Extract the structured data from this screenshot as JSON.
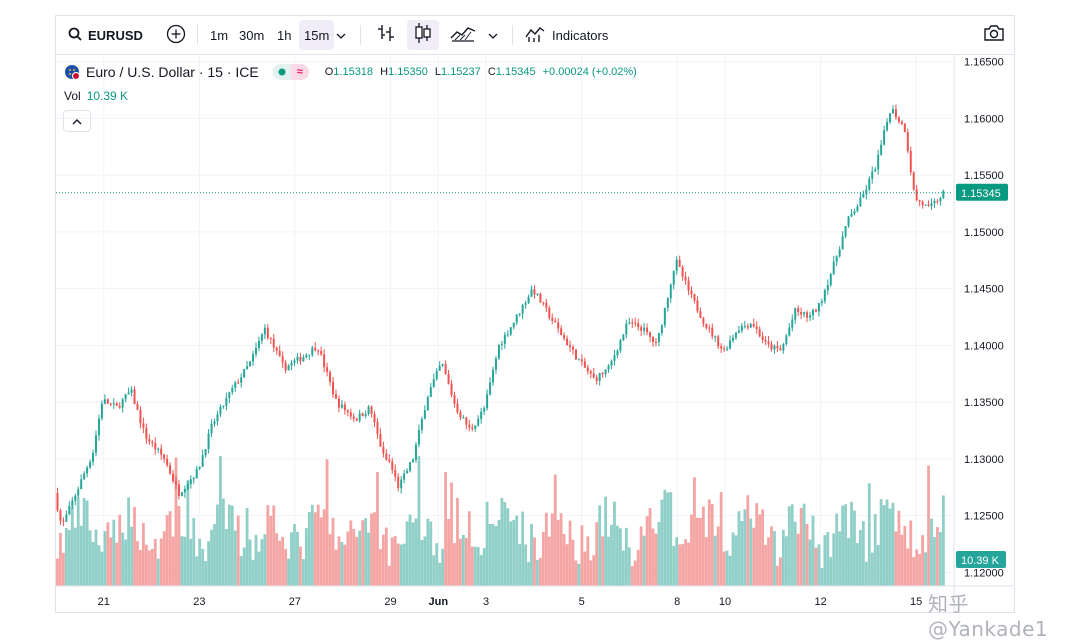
{
  "toolbar": {
    "symbol": "EURUSD",
    "timeframes": [
      "1m",
      "30m",
      "1h",
      "15m"
    ],
    "active_timeframe": "15m",
    "indicators_label": "Indicators",
    "icons": [
      "search-icon",
      "add-symbol-icon",
      "chevron-down-icon",
      "bar-style-icon",
      "candle-style-icon",
      "area-style-icon",
      "indicators-icon",
      "camera-icon"
    ]
  },
  "legend": {
    "title": "Euro / U.S. Dollar · 15 · ICE",
    "open_label": "O",
    "open": "1.15318",
    "high_label": "H",
    "high": "1.15350",
    "low_label": "L",
    "low": "1.15237",
    "close_label": "C",
    "close": "1.15345",
    "change": "+0.00024 (+0.02%)"
  },
  "volume": {
    "label": "Vol",
    "value": "10.39 K"
  },
  "watermark": "知乎 @Yankade1",
  "colors": {
    "up": "#26a69a",
    "down": "#ef5350",
    "vol_up": "#8fcfc7",
    "vol_down": "#f4a5a3",
    "accent": "#089981"
  },
  "chart_data": {
    "type": "candlestick",
    "y_ticks": [
      "1.16500",
      "1.16000",
      "1.15500",
      "1.15000",
      "1.14500",
      "1.14000",
      "1.13500",
      "1.13000",
      "1.12500",
      "1.12000"
    ],
    "ylim": [
      1.1188,
      1.1655
    ],
    "x_ticks": [
      {
        "label": "21",
        "day": 1
      },
      {
        "label": "23",
        "day": 3
      },
      {
        "label": "27",
        "day": 5
      },
      {
        "label": "29",
        "day": 7
      },
      {
        "label": "Jun",
        "day": 8
      },
      {
        "label": "3",
        "day": 9
      },
      {
        "label": "5",
        "day": 11
      },
      {
        "label": "8",
        "day": 13
      },
      {
        "label": "10",
        "day": 14
      },
      {
        "label": "12",
        "day": 16
      },
      {
        "label": "15",
        "day": 18
      }
    ],
    "last_price_label": "1.15345",
    "last_price": 1.15345,
    "volume_label": "10.39 K",
    "price_path_days": [
      0,
      0.15,
      0.4,
      0.8,
      1.0,
      1.3,
      1.6,
      1.9,
      2.3,
      2.6,
      3.0,
      3.3,
      3.7,
      4.1,
      4.4,
      4.8,
      5.2,
      5.5,
      5.9,
      6.3,
      6.6,
      6.9,
      7.0,
      7.2,
      7.5,
      7.8,
      8.1,
      8.4,
      8.7,
      9.0,
      9.3,
      9.6,
      10.0,
      10.3,
      10.6,
      11.0,
      11.3,
      11.6,
      12.0,
      12.3,
      12.6,
      13.0,
      13.3,
      13.6,
      14.0,
      14.3,
      14.6,
      14.9,
      15.2,
      15.5,
      15.8,
      16.0,
      16.3,
      16.6,
      16.9,
      17.2,
      17.5,
      17.8,
      18.0,
      18.3,
      18.6
    ],
    "price_path_values": [
      1.127,
      1.124,
      1.1265,
      1.1305,
      1.1352,
      1.1345,
      1.136,
      1.132,
      1.13,
      1.127,
      1.129,
      1.133,
      1.136,
      1.1385,
      1.1415,
      1.138,
      1.139,
      1.14,
      1.135,
      1.1335,
      1.1345,
      1.13,
      1.1298,
      1.1275,
      1.13,
      1.1355,
      1.1385,
      1.1345,
      1.1325,
      1.1345,
      1.14,
      1.142,
      1.145,
      1.143,
      1.141,
      1.1385,
      1.137,
      1.138,
      1.142,
      1.1415,
      1.14,
      1.1475,
      1.1445,
      1.142,
      1.1395,
      1.1415,
      1.142,
      1.14,
      1.1395,
      1.143,
      1.1425,
      1.1435,
      1.147,
      1.151,
      1.153,
      1.156,
      1.161,
      1.159,
      1.153,
      1.152,
      1.1534
    ]
  }
}
